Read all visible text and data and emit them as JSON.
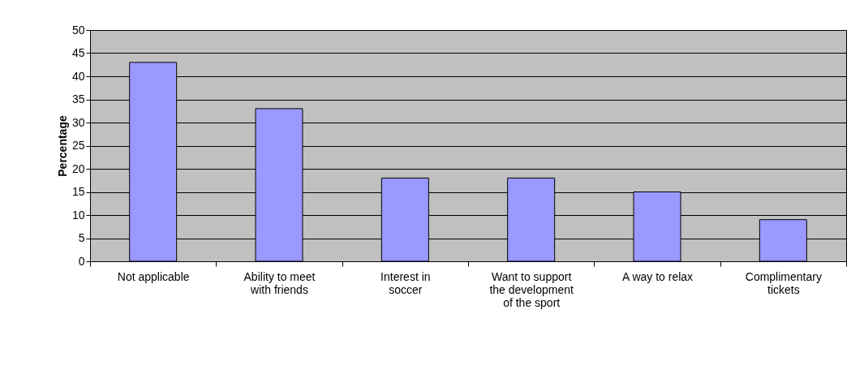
{
  "chart_data": {
    "type": "bar",
    "ylabel": "Percentage",
    "categories": [
      "Not applicable",
      "Ability to meet with friends",
      "Interest in soccer",
      "Want to support the development of the sport",
      "A way to relax",
      "Complimentary tickets"
    ],
    "values": [
      43,
      33,
      18,
      18,
      15,
      9
    ],
    "color": "#9999ff",
    "ylim": [
      0,
      50
    ],
    "yticks": [
      0,
      5,
      10,
      15,
      20,
      25,
      30,
      35,
      40,
      45,
      50
    ],
    "grid": "y"
  }
}
